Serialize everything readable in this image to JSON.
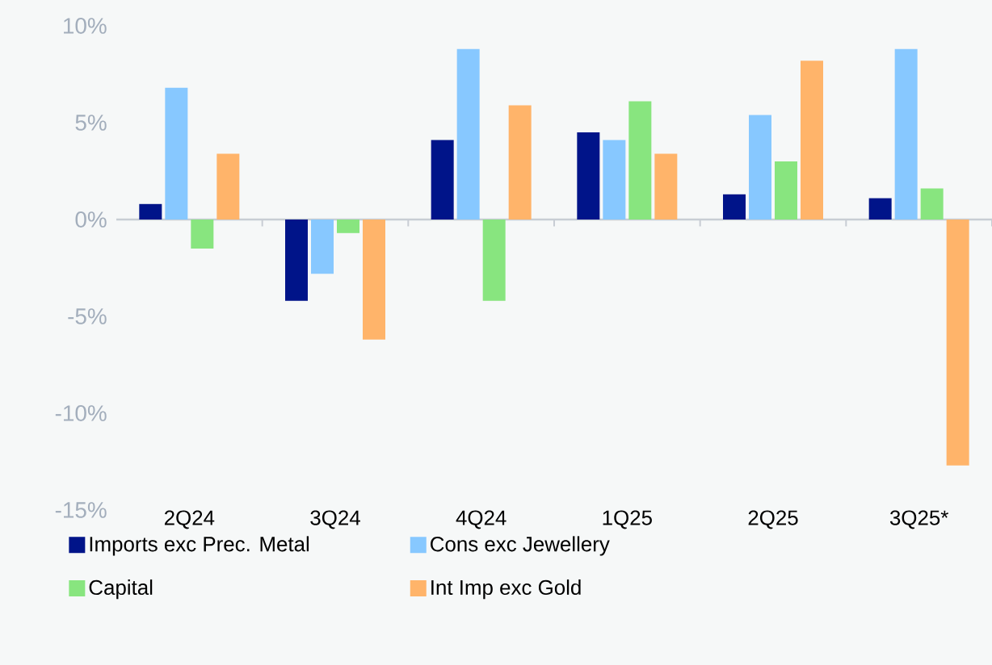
{
  "chart_data": {
    "type": "bar",
    "categories": [
      "2Q24",
      "3Q24",
      "4Q24",
      "1Q25",
      "2Q25",
      "3Q25*"
    ],
    "series": [
      {
        "name": "Imports exc Prec. Metal",
        "color": "#001489",
        "values": [
          0.8,
          -4.2,
          4.1,
          4.5,
          1.3,
          1.1
        ]
      },
      {
        "name": "Cons exc Jewellery",
        "color": "#87c8ff",
        "values": [
          6.8,
          -2.8,
          8.8,
          4.1,
          5.4,
          8.8
        ]
      },
      {
        "name": "Capital",
        "color": "#88e57f",
        "values": [
          -1.5,
          -0.7,
          -4.2,
          6.1,
          3.0,
          1.6
        ]
      },
      {
        "name": "Int Imp exc Gold",
        "color": "#ffb46a",
        "values": [
          3.4,
          -6.2,
          5.9,
          3.4,
          8.2,
          -12.7
        ]
      }
    ],
    "ylim": [
      -15,
      10
    ],
    "yticks": [
      {
        "value": -15,
        "label": "-15%"
      },
      {
        "value": -10,
        "label": "-10%"
      },
      {
        "value": -5,
        "label": "-5%"
      },
      {
        "value": 0,
        "label": "0%"
      },
      {
        "value": 5,
        "label": "5%"
      },
      {
        "value": 10,
        "label": "10%"
      }
    ],
    "legend": "bottom"
  }
}
